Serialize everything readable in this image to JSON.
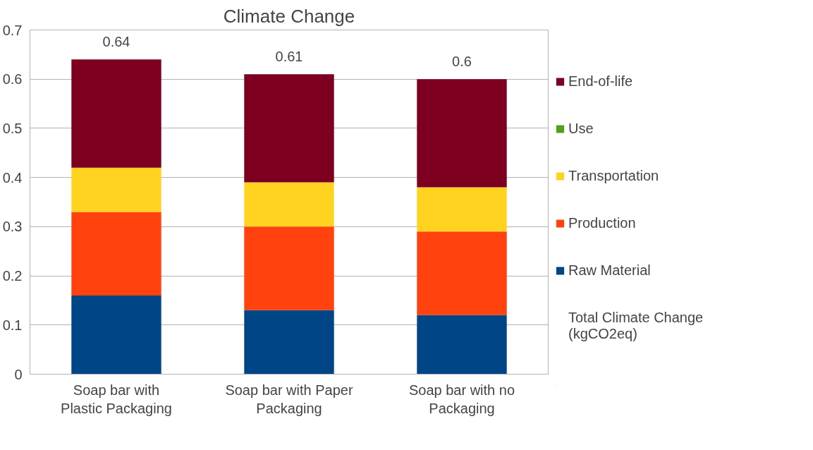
{
  "chart_data": {
    "type": "bar",
    "title": "Climate Change",
    "stacked": true,
    "categories": [
      "Soap bar with Plastic Packaging",
      "Soap bar with Paper Packaging",
      "Soap bar with no Packaging"
    ],
    "series": [
      {
        "name": "Raw Material",
        "color": "#004586",
        "values": [
          0.16,
          0.13,
          0.12
        ]
      },
      {
        "name": "Production",
        "color": "#ff420e",
        "values": [
          0.17,
          0.17,
          0.17
        ]
      },
      {
        "name": "Transportation",
        "color": "#ffd320",
        "values": [
          0.09,
          0.09,
          0.09
        ]
      },
      {
        "name": "Use",
        "color": "#579d1c",
        "values": [
          0,
          0,
          0
        ]
      },
      {
        "name": "End-of-life",
        "color": "#7e0021",
        "values": [
          0.22,
          0.22,
          0.22
        ]
      }
    ],
    "totals": [
      "0.64",
      "0.61",
      "0.6"
    ],
    "annotations": [
      "Total Climate Change (kgCO2eq)"
    ],
    "ylim": [
      0,
      0.7
    ],
    "yticks": [
      0,
      0.1,
      0.2,
      0.3,
      0.4,
      0.5,
      0.6,
      0.7
    ],
    "grid": "y",
    "legend": "right"
  }
}
